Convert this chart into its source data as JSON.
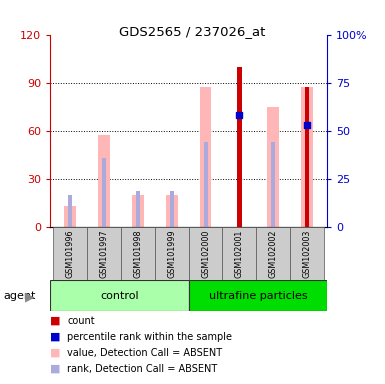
{
  "title": "GDS2565 / 237026_at",
  "samples": [
    "GSM101996",
    "GSM101997",
    "GSM101998",
    "GSM101999",
    "GSM102000",
    "GSM102001",
    "GSM102002",
    "GSM102003"
  ],
  "value_absent": [
    13,
    57,
    20,
    20,
    87,
    null,
    75,
    87
  ],
  "rank_absent": [
    20,
    43,
    22,
    22,
    53,
    null,
    53,
    53
  ],
  "count": [
    null,
    null,
    null,
    null,
    null,
    100,
    null,
    null
  ],
  "percentile_rank": [
    null,
    null,
    null,
    null,
    null,
    58,
    null,
    null
  ],
  "count_present_bar": [
    null,
    null,
    null,
    null,
    null,
    null,
    null,
    87
  ],
  "rank_present_bar": [
    null,
    null,
    null,
    null,
    null,
    null,
    null,
    53
  ],
  "ylim_left": [
    0,
    120
  ],
  "ylim_right": [
    0,
    100
  ],
  "yticks_left": [
    0,
    30,
    60,
    90,
    120
  ],
  "yticks_right": [
    0,
    25,
    50,
    75,
    100
  ],
  "value_absent_color": "#ffb6b6",
  "rank_absent_color": "#aaaadd",
  "count_color": "#cc0000",
  "percentile_color": "#0000cc",
  "left_axis_color": "#cc0000",
  "right_axis_color": "#0000cc",
  "control_color": "#aaffaa",
  "ultrafine_color": "#00dd00",
  "fig_width": 3.85,
  "fig_height": 3.84,
  "dpi": 100
}
